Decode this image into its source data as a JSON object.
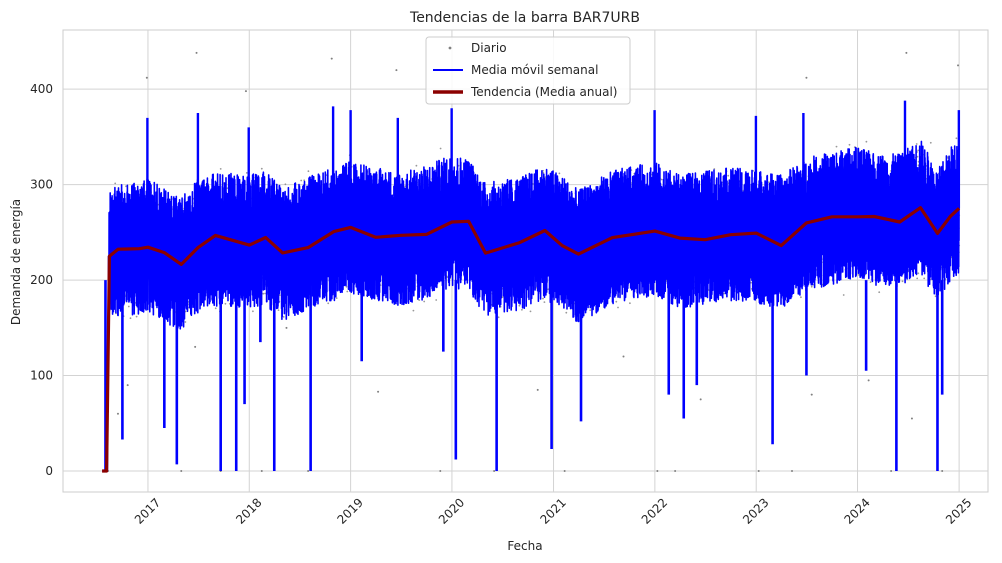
{
  "chart_data": {
    "type": "line",
    "title": "Tendencias de la barra BAR7URB",
    "xlabel": "Fecha",
    "ylabel": "Demanda de energía",
    "x_axis": {
      "kind": "date",
      "range": [
        "2016-03-01",
        "2025-04-15"
      ],
      "tick_labels": [
        "2017",
        "2018",
        "2019",
        "2020",
        "2021",
        "2022",
        "2023",
        "2024",
        "2025"
      ],
      "tick_dates": [
        "2017-01-01",
        "2018-01-01",
        "2019-01-01",
        "2020-01-01",
        "2021-01-01",
        "2022-01-01",
        "2023-01-01",
        "2024-01-01",
        "2025-01-01"
      ]
    },
    "y_axis": {
      "range": [
        -22,
        462
      ],
      "tick_labels": [
        "0",
        "100",
        "200",
        "300",
        "400"
      ],
      "tick_values": [
        0,
        100,
        200,
        300,
        400
      ]
    },
    "grid": true,
    "legend": {
      "placement": "top-center",
      "entries": [
        {
          "label": "Diario",
          "color": "#808080",
          "marker": "dot"
        },
        {
          "label": "Media móvil semanal",
          "color": "#0000ff",
          "marker": "line"
        },
        {
          "label": "Tendencia (Media anual)",
          "color": "#8b0000",
          "marker": "thick-line"
        }
      ]
    },
    "series": [
      {
        "name": "Diario",
        "style": "scatter",
        "color": "#808080",
        "description_values": "noisy daily demand points from 2016-07 to 2025-01",
        "x_start": "2016-07-20",
        "x_end": "2025-01-01",
        "typical_range": [
          170,
          360
        ],
        "max": 439,
        "outliers": [
          {
            "x": "2016-07-25",
            "y": 0
          },
          {
            "x": "2016-08-10",
            "y": 0
          },
          {
            "x": "2017-05-01",
            "y": 0
          },
          {
            "x": "2017-09-20",
            "y": 0
          },
          {
            "x": "2018-02-15",
            "y": 0
          },
          {
            "x": "2018-08-01",
            "y": 0
          },
          {
            "x": "2019-11-20",
            "y": 0
          },
          {
            "x": "2020-06-01",
            "y": 0
          },
          {
            "x": "2021-02-10",
            "y": 0
          },
          {
            "x": "2022-01-10",
            "y": 0
          },
          {
            "x": "2022-03-15",
            "y": 0
          },
          {
            "x": "2023-01-10",
            "y": 0
          },
          {
            "x": "2023-05-10",
            "y": 0
          },
          {
            "x": "2024-05-01",
            "y": 0
          },
          {
            "x": "2024-11-01",
            "y": 0
          },
          {
            "x": "2019-04-10",
            "y": 83
          },
          {
            "x": "2020-11-05",
            "y": 85
          },
          {
            "x": "2022-06-15",
            "y": 75
          },
          {
            "x": "2023-07-20",
            "y": 80
          },
          {
            "x": "2024-02-10",
            "y": 95
          },
          {
            "x": "2021-09-10",
            "y": 120
          },
          {
            "x": "2017-06-20",
            "y": 130
          },
          {
            "x": "2018-05-15",
            "y": 150
          },
          {
            "x": "2016-09-15",
            "y": 60
          },
          {
            "x": "2016-10-20",
            "y": 90
          },
          {
            "x": "2024-07-15",
            "y": 55
          }
        ]
      },
      {
        "name": "Media móvil semanal",
        "style": "line",
        "color": "#0000ff",
        "description_values": "dense blue band oscillating around the trend between about 175 and 330",
        "typical_range": [
          175,
          330
        ],
        "spikes_up": [
          {
            "x": "2016-12-30",
            "y": 370
          },
          {
            "x": "2017-06-30",
            "y": 375
          },
          {
            "x": "2017-12-30",
            "y": 360
          },
          {
            "x": "2018-10-30",
            "y": 382
          },
          {
            "x": "2019-01-01",
            "y": 378
          },
          {
            "x": "2019-06-20",
            "y": 370
          },
          {
            "x": "2019-12-31",
            "y": 380
          },
          {
            "x": "2021-12-31",
            "y": 378
          },
          {
            "x": "2022-12-31",
            "y": 372
          },
          {
            "x": "2023-06-20",
            "y": 375
          },
          {
            "x": "2024-06-20",
            "y": 388
          },
          {
            "x": "2024-12-31",
            "y": 378
          }
        ],
        "dips": [
          {
            "x": "2016-08-01",
            "y": 0
          },
          {
            "x": "2016-10-01",
            "y": 33
          },
          {
            "x": "2017-03-01",
            "y": 45
          },
          {
            "x": "2017-04-15",
            "y": 7
          },
          {
            "x": "2017-09-20",
            "y": 0
          },
          {
            "x": "2017-11-15",
            "y": 0
          },
          {
            "x": "2017-12-15",
            "y": 70
          },
          {
            "x": "2018-02-10",
            "y": 135
          },
          {
            "x": "2018-04-01",
            "y": 0
          },
          {
            "x": "2018-08-10",
            "y": 0
          },
          {
            "x": "2019-02-10",
            "y": 115
          },
          {
            "x": "2019-12-01",
            "y": 125
          },
          {
            "x": "2020-01-15",
            "y": 12
          },
          {
            "x": "2020-06-10",
            "y": 0
          },
          {
            "x": "2020-12-25",
            "y": 23
          },
          {
            "x": "2021-04-10",
            "y": 52
          },
          {
            "x": "2022-02-20",
            "y": 80
          },
          {
            "x": "2022-04-15",
            "y": 55
          },
          {
            "x": "2022-06-01",
            "y": 90
          },
          {
            "x": "2023-03-01",
            "y": 28
          },
          {
            "x": "2023-07-01",
            "y": 100
          },
          {
            "x": "2024-02-01",
            "y": 105
          },
          {
            "x": "2024-05-20",
            "y": 0
          },
          {
            "x": "2024-10-15",
            "y": 0
          },
          {
            "x": "2024-11-01",
            "y": 80
          }
        ]
      },
      {
        "name": "Tendencia (Media anual)",
        "style": "line",
        "color": "#8b0000",
        "points": [
          {
            "x": "2016-07-20",
            "y": 0
          },
          {
            "x": "2016-08-05",
            "y": 0
          },
          {
            "x": "2016-08-15",
            "y": 225
          },
          {
            "x": "2016-09-15",
            "y": 230
          },
          {
            "x": "2016-12-01",
            "y": 232
          },
          {
            "x": "2017-01-01",
            "y": 238
          },
          {
            "x": "2017-03-01",
            "y": 225
          },
          {
            "x": "2017-05-01",
            "y": 218
          },
          {
            "x": "2017-07-01",
            "y": 236
          },
          {
            "x": "2017-09-01",
            "y": 243
          },
          {
            "x": "2018-01-01",
            "y": 240
          },
          {
            "x": "2018-03-01",
            "y": 244
          },
          {
            "x": "2018-05-01",
            "y": 226
          },
          {
            "x": "2018-08-01",
            "y": 238
          },
          {
            "x": "2018-11-01",
            "y": 248
          },
          {
            "x": "2019-01-01",
            "y": 255
          },
          {
            "x": "2019-04-01",
            "y": 248
          },
          {
            "x": "2019-07-01",
            "y": 243
          },
          {
            "x": "2019-10-01",
            "y": 250
          },
          {
            "x": "2020-01-01",
            "y": 262
          },
          {
            "x": "2020-03-01",
            "y": 258
          },
          {
            "x": "2020-05-01",
            "y": 232
          },
          {
            "x": "2020-09-01",
            "y": 238
          },
          {
            "x": "2020-12-01",
            "y": 250
          },
          {
            "x": "2021-02-01",
            "y": 240
          },
          {
            "x": "2021-04-01",
            "y": 224
          },
          {
            "x": "2021-08-01",
            "y": 245
          },
          {
            "x": "2022-01-01",
            "y": 254
          },
          {
            "x": "2022-04-01",
            "y": 240
          },
          {
            "x": "2022-07-01",
            "y": 245
          },
          {
            "x": "2022-10-01",
            "y": 248
          },
          {
            "x": "2023-01-01",
            "y": 246
          },
          {
            "x": "2023-04-01",
            "y": 240
          },
          {
            "x": "2023-07-01",
            "y": 258
          },
          {
            "x": "2023-10-01",
            "y": 265
          },
          {
            "x": "2024-01-01",
            "y": 270
          },
          {
            "x": "2024-03-01",
            "y": 263
          },
          {
            "x": "2024-06-01",
            "y": 262
          },
          {
            "x": "2024-08-15",
            "y": 278
          },
          {
            "x": "2024-10-15",
            "y": 245
          },
          {
            "x": "2024-12-01",
            "y": 270
          },
          {
            "x": "2025-01-01",
            "y": 275
          }
        ]
      }
    ]
  }
}
